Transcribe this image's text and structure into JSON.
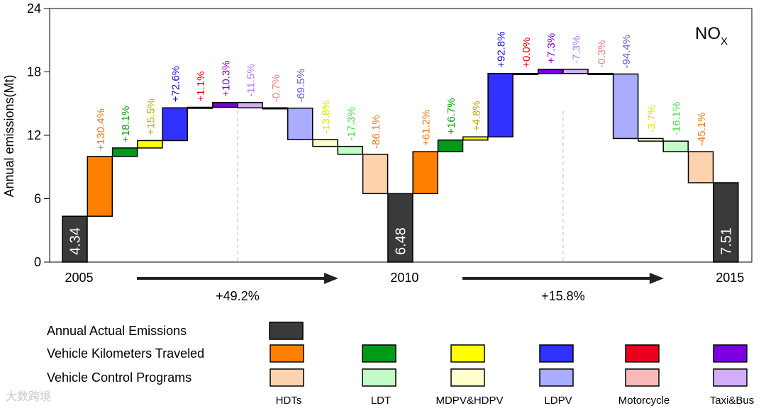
{
  "chart_data": {
    "type": "waterfall",
    "title": "NO",
    "title_subscript": "X",
    "ylabel": "Annual emissions(Mt)",
    "ylim": [
      0,
      24
    ],
    "yticks": [
      0,
      6,
      12,
      18,
      24
    ],
    "segments": [
      {
        "label": "2005",
        "total": 4.34,
        "arrow_text": "+49.2%",
        "changes": [
          {
            "group": "Vehicle Kilometers Traveled",
            "vehicle": "HDTs",
            "from": 4.34,
            "to": 10.0,
            "text": "+130.4%"
          },
          {
            "group": "Vehicle Kilometers Traveled",
            "vehicle": "LDT",
            "from": 10.0,
            "to": 10.8,
            "text": "+18.1%"
          },
          {
            "group": "Vehicle Kilometers Traveled",
            "vehicle": "MDPV&HDPV",
            "from": 10.8,
            "to": 11.5,
            "text": "+15.5%"
          },
          {
            "group": "Vehicle Kilometers Traveled",
            "vehicle": "LDPV",
            "from": 11.5,
            "to": 14.6,
            "text": "+72.6%"
          },
          {
            "group": "Vehicle Kilometers Traveled",
            "vehicle": "Motorcycle",
            "from": 14.6,
            "to": 14.65,
            "text": "+1.1%"
          },
          {
            "group": "Vehicle Kilometers Traveled",
            "vehicle": "Taxi&Bus",
            "from": 14.65,
            "to": 15.1,
            "text": "+10.3%"
          },
          {
            "group": "Vehicle Control Programs",
            "vehicle": "Taxi&Bus",
            "from": 15.1,
            "to": 14.6,
            "text": "-11.5%"
          },
          {
            "group": "Vehicle Control Programs",
            "vehicle": "Motorcycle",
            "from": 14.6,
            "to": 14.57,
            "text": "-0.7%"
          },
          {
            "group": "Vehicle Control Programs",
            "vehicle": "LDPV",
            "from": 14.57,
            "to": 11.6,
            "text": "-69.5%"
          },
          {
            "group": "Vehicle Control Programs",
            "vehicle": "MDPV&HDPV",
            "from": 11.6,
            "to": 10.95,
            "text": "-13.8%"
          },
          {
            "group": "Vehicle Control Programs",
            "vehicle": "LDT",
            "from": 10.95,
            "to": 10.2,
            "text": "-17.3%"
          },
          {
            "group": "Vehicle Control Programs",
            "vehicle": "HDTs",
            "from": 10.2,
            "to": 6.48,
            "text": "-86.1%"
          }
        ]
      },
      {
        "label": "2010",
        "total": 6.48,
        "arrow_text": "+15.8%",
        "changes": [
          {
            "group": "Vehicle Kilometers Traveled",
            "vehicle": "HDTs",
            "from": 6.48,
            "to": 10.45,
            "text": "+61.2%"
          },
          {
            "group": "Vehicle Kilometers Traveled",
            "vehicle": "LDT",
            "from": 10.45,
            "to": 11.55,
            "text": "+16.7%"
          },
          {
            "group": "Vehicle Kilometers Traveled",
            "vehicle": "MDPV&HDPV",
            "from": 11.55,
            "to": 11.85,
            "text": "+4.8%"
          },
          {
            "group": "Vehicle Kilometers Traveled",
            "vehicle": "LDPV",
            "from": 11.85,
            "to": 17.85,
            "text": "+92.8%"
          },
          {
            "group": "Vehicle Kilometers Traveled",
            "vehicle": "Motorcycle",
            "from": 17.85,
            "to": 17.85,
            "text": "+0.0%"
          },
          {
            "group": "Vehicle Kilometers Traveled",
            "vehicle": "Taxi&Bus",
            "from": 17.85,
            "to": 18.25,
            "text": "+7.3%"
          },
          {
            "group": "Vehicle Control Programs",
            "vehicle": "Taxi&Bus",
            "from": 18.25,
            "to": 17.85,
            "text": "-7.3%"
          },
          {
            "group": "Vehicle Control Programs",
            "vehicle": "Motorcycle",
            "from": 17.85,
            "to": 17.8,
            "text": "-0.3%"
          },
          {
            "group": "Vehicle Control Programs",
            "vehicle": "LDPV",
            "from": 17.8,
            "to": 11.7,
            "text": "-94.4%"
          },
          {
            "group": "Vehicle Control Programs",
            "vehicle": "MDPV&HDPV",
            "from": 11.7,
            "to": 11.45,
            "text": "-3.7%"
          },
          {
            "group": "Vehicle Control Programs",
            "vehicle": "LDT",
            "from": 11.45,
            "to": 10.45,
            "text": "-16.1%"
          },
          {
            "group": "Vehicle Control Programs",
            "vehicle": "HDTs",
            "from": 10.45,
            "to": 7.51,
            "text": "-45.1%"
          }
        ]
      }
    ],
    "final": {
      "label": "2015",
      "total": 7.51
    },
    "vehicles": [
      "HDTs",
      "LDT",
      "MDPV&HDPV",
      "LDPV",
      "Motorcycle",
      "Taxi&Bus"
    ],
    "colors": {
      "actual": "#3a3a3a",
      "Vehicle Kilometers Traveled": {
        "HDTs": "#ff8000",
        "LDT": "#009a1a",
        "MDPV&HDPV": "#ffff00",
        "LDPV": "#3030ff",
        "Motorcycle": "#e8001c",
        "Taxi&Bus": "#7a00e0"
      },
      "Vehicle Control Programs": {
        "HDTs": "#fcd3ac",
        "LDT": "#c2fbc6",
        "MDPV&HDPV": "#ffffc9",
        "LDPV": "#a9acff",
        "Motorcycle": "#fab9b9",
        "Taxi&Bus": "#d2aef8"
      }
    },
    "label_colors": {
      "Vehicle Kilometers Traveled": {
        "HDTs": "#f07818",
        "LDT": "#00a000",
        "MDPV&HDPV": "#b0b000",
        "LDPV": "#1010d0",
        "Motorcycle": "#e00010",
        "Taxi&Bus": "#8000d0"
      },
      "Vehicle Control Programs": {
        "HDTs": "#f07818",
        "LDT": "#40e040",
        "MDPV&HDPV": "#e0e000",
        "LDPV": "#6060e0",
        "Motorcycle": "#f08080",
        "Taxi&Bus": "#b080f0"
      }
    },
    "legend": {
      "rows": [
        "Annual Actual Emissions",
        "Vehicle Kilometers Traveled",
        "Vehicle  Control   Programs"
      ]
    }
  },
  "watermark": "大数跨境"
}
